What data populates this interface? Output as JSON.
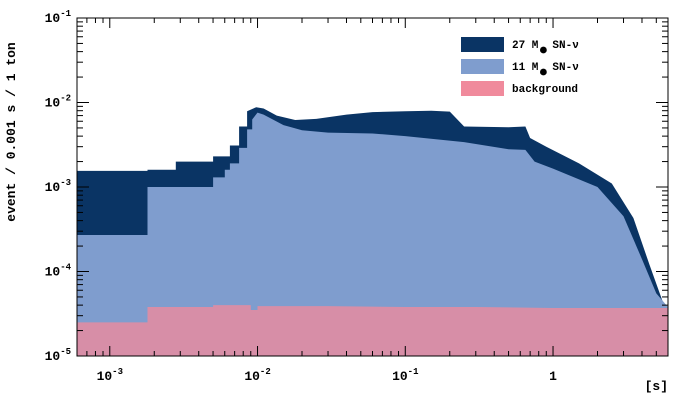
{
  "chart_data": {
    "type": "area",
    "xlabel": "[s]",
    "ylabel": "event / 0.001 s / 1 ton",
    "x_scale": "log",
    "y_scale": "log",
    "xlim": [
      0.0006,
      6.0
    ],
    "ylim": [
      1e-05,
      0.1
    ],
    "x_ticks": [
      {
        "value": 0.001,
        "label": "10",
        "exp": "-3"
      },
      {
        "value": 0.01,
        "label": "10",
        "exp": "-2"
      },
      {
        "value": 0.1,
        "label": "10",
        "exp": "-1"
      },
      {
        "value": 1,
        "label": "1",
        "exp": ""
      }
    ],
    "y_ticks": [
      {
        "value": 0.1,
        "label": "10",
        "exp": "-1"
      },
      {
        "value": 0.01,
        "label": "10",
        "exp": "-2"
      },
      {
        "value": 0.001,
        "label": "10",
        "exp": "-3"
      },
      {
        "value": 0.0001,
        "label": "10",
        "exp": "-4"
      },
      {
        "value": 1e-05,
        "label": "10",
        "exp": "-5"
      }
    ],
    "legend_placement": "top-right",
    "series": [
      {
        "name": "27 M SN-ν",
        "label_parts": [
          "27 M",
          "SN-ν"
        ],
        "color": "#0a3464",
        "points": [
          [
            0.0006,
            0.00155
          ],
          [
            0.0018,
            0.00155
          ],
          [
            0.0018,
            0.0016
          ],
          [
            0.0028,
            0.0016
          ],
          [
            0.0028,
            0.002
          ],
          [
            0.005,
            0.002
          ],
          [
            0.005,
            0.0023
          ],
          [
            0.0065,
            0.0023
          ],
          [
            0.0065,
            0.0031
          ],
          [
            0.0075,
            0.0031
          ],
          [
            0.0075,
            0.0052
          ],
          [
            0.0085,
            0.0052
          ],
          [
            0.0085,
            0.0079
          ],
          [
            0.0098,
            0.0088
          ],
          [
            0.011,
            0.0085
          ],
          [
            0.0135,
            0.007
          ],
          [
            0.018,
            0.0062
          ],
          [
            0.025,
            0.0064
          ],
          [
            0.04,
            0.0072
          ],
          [
            0.06,
            0.0077
          ],
          [
            0.1,
            0.0079
          ],
          [
            0.15,
            0.008
          ],
          [
            0.2,
            0.0078
          ],
          [
            0.25,
            0.0052
          ],
          [
            0.5,
            0.0051
          ],
          [
            0.65,
            0.0052
          ],
          [
            0.7,
            0.0038
          ],
          [
            0.9,
            0.003
          ],
          [
            1.5,
            0.0019
          ],
          [
            2.5,
            0.0011
          ],
          [
            3.5,
            0.00043
          ],
          [
            4.5,
            0.00012
          ],
          [
            5.5,
            4.5e-05
          ],
          [
            6.0,
            3e-05
          ]
        ]
      },
      {
        "name": "11 M SN-ν",
        "label_parts": [
          "11 M",
          "SN-ν"
        ],
        "color": "#7f9dce",
        "points": [
          [
            0.0006,
            0.00027
          ],
          [
            0.0018,
            0.00027
          ],
          [
            0.0018,
            0.001
          ],
          [
            0.005,
            0.001
          ],
          [
            0.005,
            0.0013
          ],
          [
            0.006,
            0.0013
          ],
          [
            0.006,
            0.0016
          ],
          [
            0.0065,
            0.0016
          ],
          [
            0.0065,
            0.0019
          ],
          [
            0.0075,
            0.0019
          ],
          [
            0.0075,
            0.0029
          ],
          [
            0.0085,
            0.0029
          ],
          [
            0.0085,
            0.0048
          ],
          [
            0.0092,
            0.0048
          ],
          [
            0.0092,
            0.0063
          ],
          [
            0.01,
            0.0076
          ],
          [
            0.011,
            0.0072
          ],
          [
            0.015,
            0.0054
          ],
          [
            0.02,
            0.0047
          ],
          [
            0.03,
            0.0044
          ],
          [
            0.06,
            0.0043
          ],
          [
            0.1,
            0.004
          ],
          [
            0.25,
            0.0034
          ],
          [
            0.5,
            0.0028
          ],
          [
            0.65,
            0.00275
          ],
          [
            0.75,
            0.002
          ],
          [
            1.0,
            0.00165
          ],
          [
            2.0,
            0.001
          ],
          [
            3.0,
            0.00045
          ],
          [
            4.0,
            0.00014
          ],
          [
            5.0,
            5.5e-05
          ],
          [
            6.0,
            3.8e-05
          ]
        ]
      },
      {
        "name": "background",
        "label_parts": [
          "background",
          ""
        ],
        "color": "#f08a9c",
        "points": [
          [
            0.0006,
            2.5e-05
          ],
          [
            0.0018,
            2.5e-05
          ],
          [
            0.0018,
            3.8e-05
          ],
          [
            0.005,
            3.8e-05
          ],
          [
            0.005,
            4e-05
          ],
          [
            0.009,
            4e-05
          ],
          [
            0.009,
            3.5e-05
          ],
          [
            0.01,
            3.5e-05
          ],
          [
            0.01,
            3.9e-05
          ],
          [
            0.03,
            3.9e-05
          ],
          [
            0.1,
            3.8e-05
          ],
          [
            0.3,
            3.8e-05
          ],
          [
            1.0,
            3.7e-05
          ],
          [
            6.0,
            3.7e-05
          ]
        ]
      }
    ]
  }
}
